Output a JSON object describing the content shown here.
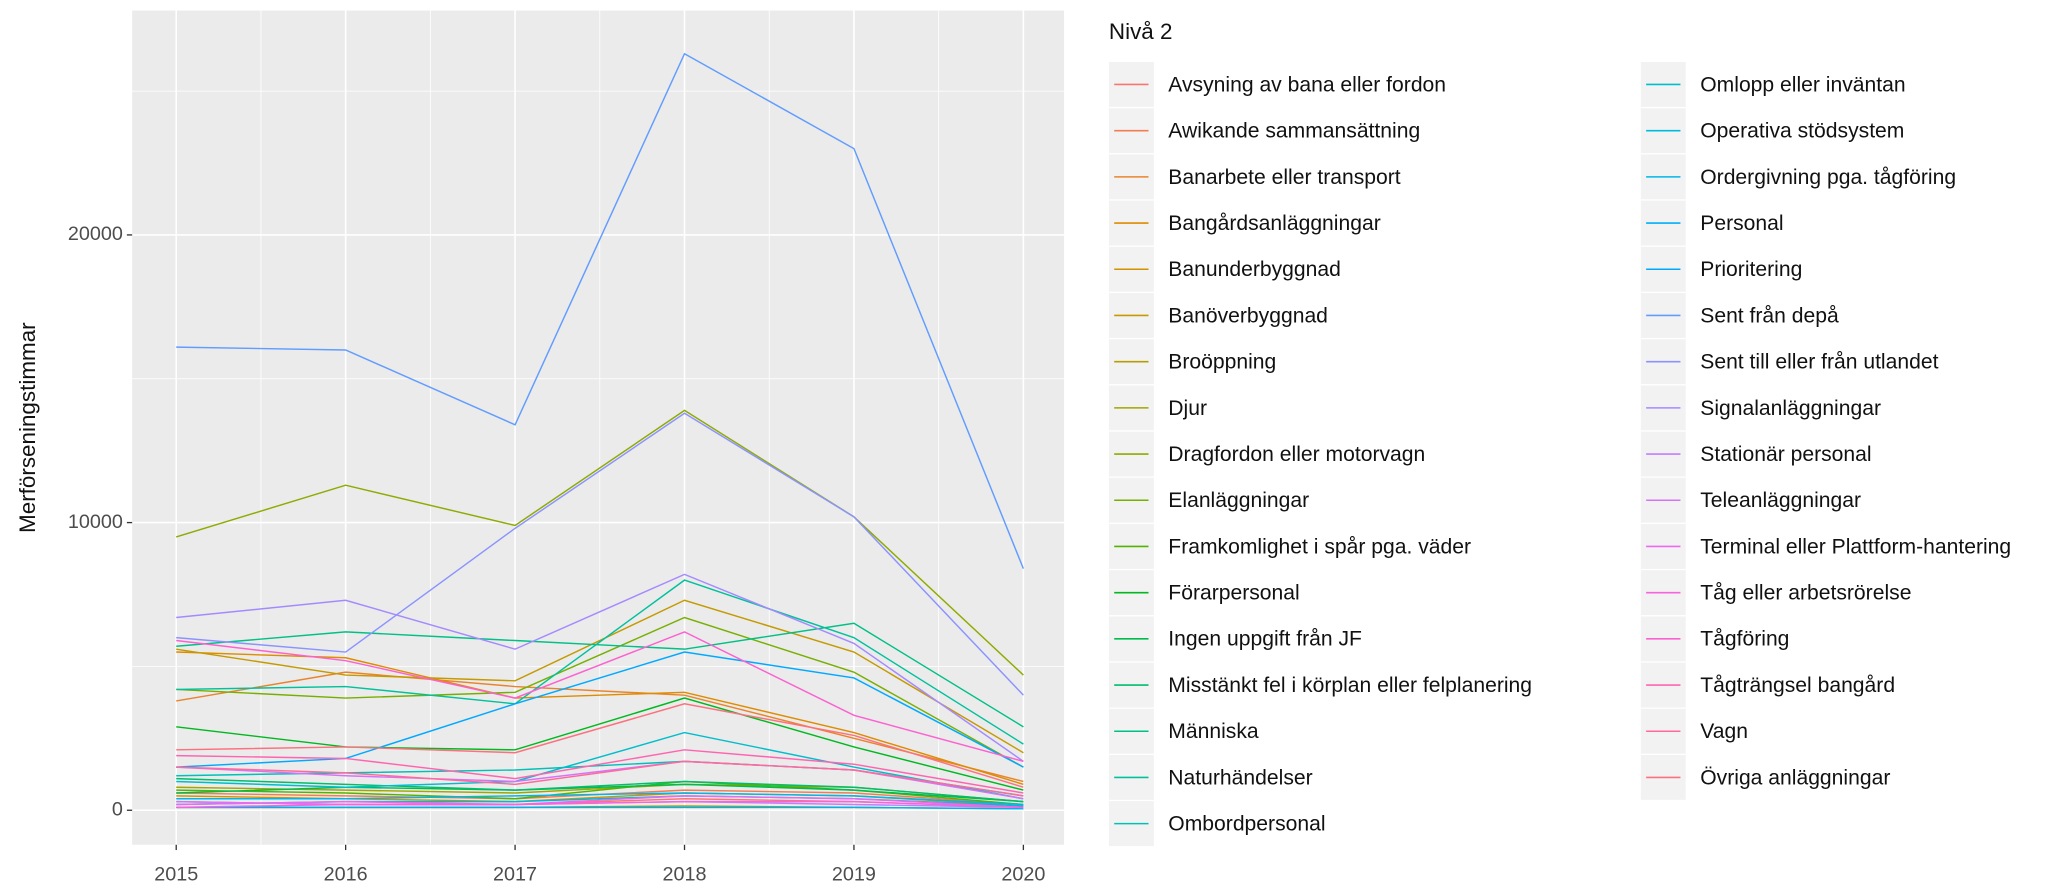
{
  "chart_data": {
    "type": "line",
    "y_label": "Merförseningstimmar",
    "legend_title": "Nivå 2",
    "x": [
      2015,
      2016,
      2017,
      2018,
      2019,
      2020
    ],
    "xlim": [
      2014.74,
      2020.24
    ],
    "xticks": [
      2015,
      2016,
      2017,
      2018,
      2019,
      2020
    ],
    "ylim": [
      -1200,
      27800
    ],
    "yticks": [
      0,
      10000,
      20000
    ],
    "grid": true,
    "legend": "right",
    "series": [
      {
        "name": "Avsyning av bana eller fordon",
        "color": "#F8766D",
        "values": [
          300,
          200,
          200,
          400,
          300,
          100
        ]
      },
      {
        "name": "Awikande sammansättning",
        "color": "#F27D52",
        "values": [
          600,
          500,
          400,
          700,
          600,
          200
        ]
      },
      {
        "name": "Banarbete eller transport",
        "color": "#E9842C",
        "values": [
          3800,
          4800,
          4300,
          4000,
          2500,
          1000
        ]
      },
      {
        "name": "Bangårdsanläggningar",
        "color": "#DE8C00",
        "values": [
          5500,
          5300,
          3900,
          4100,
          2700,
          900
        ]
      },
      {
        "name": "Banunderbyggnad",
        "color": "#D29300",
        "values": [
          500,
          400,
          300,
          600,
          500,
          150
        ]
      },
      {
        "name": "Banöverbyggnad",
        "color": "#C49A00",
        "values": [
          5600,
          4700,
          4500,
          7300,
          5500,
          2000
        ]
      },
      {
        "name": "Broöppning",
        "color": "#B59F00",
        "values": [
          100,
          100,
          100,
          150,
          100,
          50
        ]
      },
      {
        "name": "Djur",
        "color": "#A3A500",
        "values": [
          800,
          700,
          600,
          900,
          800,
          300
        ]
      },
      {
        "name": "Dragfordon  eller  motorvagn",
        "color": "#8FAA00",
        "values": [
          9500,
          11300,
          9900,
          13900,
          10200,
          4700
        ]
      },
      {
        "name": "Elanläggningar",
        "color": "#77AF00",
        "values": [
          4200,
          3900,
          4100,
          6700,
          4800,
          1500
        ]
      },
      {
        "name": "Framkomlighet i spår pga. väder",
        "color": "#53B400",
        "values": [
          700,
          600,
          400,
          1000,
          700,
          200
        ]
      },
      {
        "name": "Förarpersonal",
        "color": "#00B81F",
        "values": [
          2900,
          2200,
          2100,
          3900,
          2200,
          700
        ]
      },
      {
        "name": "Ingen uppgift från JF",
        "color": "#00BB4E",
        "values": [
          600,
          800,
          700,
          900,
          700,
          300
        ]
      },
      {
        "name": "Misstänkt fel i körplan eller felplanering",
        "color": "#00BE6C",
        "values": [
          1100,
          900,
          700,
          1000,
          800,
          300
        ]
      },
      {
        "name": "Människa",
        "color": "#00C086",
        "values": [
          5700,
          6200,
          5900,
          5600,
          6500,
          2900
        ]
      },
      {
        "name": "Naturhändelser",
        "color": "#00C19C",
        "values": [
          4200,
          4300,
          3700,
          8000,
          6000,
          2300
        ]
      },
      {
        "name": "Ombordpersonal",
        "color": "#00C0B8",
        "values": [
          1200,
          1300,
          1400,
          1700,
          1400,
          500
        ]
      },
      {
        "name": "Omlopp eller inväntan",
        "color": "#00BDCC",
        "values": [
          1000,
          800,
          1000,
          2700,
          1500,
          400
        ]
      },
      {
        "name": "Operativa stödsystem",
        "color": "#00BADE",
        "values": [
          200,
          300,
          300,
          500,
          400,
          150
        ]
      },
      {
        "name": "Ordergivning pga. tågföring",
        "color": "#00B6EB",
        "values": [
          400,
          400,
          500,
          600,
          500,
          200
        ]
      },
      {
        "name": "Personal",
        "color": "#00B0F6",
        "values": [
          100,
          100,
          100,
          100,
          100,
          50
        ]
      },
      {
        "name": "Prioritering",
        "color": "#00A9FF",
        "values": [
          1500,
          1800,
          3700,
          5500,
          4600,
          1500
        ]
      },
      {
        "name": "Sent från depå",
        "color": "#619CFF",
        "values": [
          16100,
          16000,
          13400,
          26300,
          23000,
          8400
        ]
      },
      {
        "name": "Sent till eller från utlandet",
        "color": "#8B93FF",
        "values": [
          6000,
          5500,
          9800,
          13800,
          10200,
          4000
        ]
      },
      {
        "name": "Signalanläggningar",
        "color": "#A58AFF",
        "values": [
          6700,
          7300,
          5600,
          8200,
          5800,
          1700
        ]
      },
      {
        "name": "Stationär personal",
        "color": "#C27DFF",
        "values": [
          300,
          200,
          200,
          300,
          200,
          100
        ]
      },
      {
        "name": "Teleanläggningar",
        "color": "#D573F8",
        "values": [
          1500,
          1200,
          1000,
          1700,
          1400,
          400
        ]
      },
      {
        "name": "Terminal eller Plattform-hantering",
        "color": "#EC69EF",
        "values": [
          200,
          300,
          200,
          500,
          400,
          100
        ]
      },
      {
        "name": "Tåg eller arbetsrörelse",
        "color": "#F763E0",
        "values": [
          100,
          200,
          200,
          300,
          300,
          100
        ]
      },
      {
        "name": "Tågföring",
        "color": "#FD61D1",
        "values": [
          5900,
          5200,
          3900,
          6200,
          3300,
          1700
        ]
      },
      {
        "name": "Tågträngsel bangård",
        "color": "#FF64B0",
        "values": [
          1900,
          1800,
          1100,
          2100,
          1600,
          600
        ]
      },
      {
        "name": "Vagn",
        "color": "#FF6A98",
        "values": [
          1500,
          1300,
          900,
          1700,
          1400,
          500
        ]
      },
      {
        "name": "Övriga anläggningar",
        "color": "#FC717F",
        "values": [
          2100,
          2200,
          2000,
          3700,
          2600,
          800
        ]
      }
    ]
  }
}
